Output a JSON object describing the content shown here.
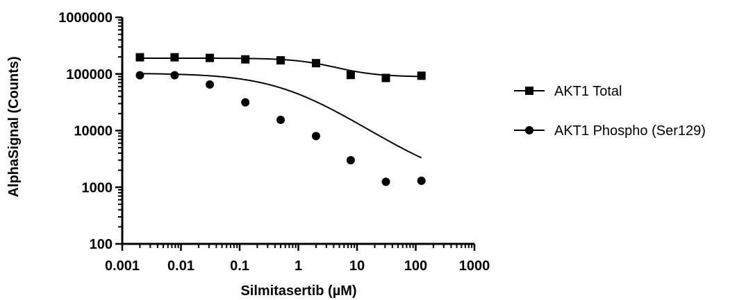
{
  "chart_data": {
    "type": "scatter",
    "xlabel": "Silmitasertib (µM)",
    "ylabel": "AlphaSignal (Counts)",
    "xscale": "log",
    "yscale": "log",
    "xlim": [
      0.001,
      1000
    ],
    "ylim": [
      100,
      1000000
    ],
    "x_ticks": [
      "0.001",
      "0.01",
      "0.1",
      "1",
      "10",
      "100",
      "1000"
    ],
    "y_ticks": [
      "100",
      "1000",
      "10000",
      "100000",
      "1000000"
    ],
    "grid": false,
    "legend_position": "right",
    "series": [
      {
        "name": "AKT1 Total",
        "marker": "square",
        "color": "#000000",
        "x": [
          0.002,
          0.0078,
          0.031,
          0.125,
          0.5,
          2,
          7.8,
          31,
          125
        ],
        "y": [
          197000,
          197000,
          192000,
          181000,
          174000,
          155000,
          96000,
          85000,
          93000
        ],
        "fit": {
          "model": "four-parameter logistic",
          "top": 190000,
          "bottom": 89000,
          "ec50": 3.2,
          "hill": 1.2
        }
      },
      {
        "name": "AKT1 Phospho (Ser129)",
        "marker": "circle",
        "color": "#000000",
        "x": [
          0.002,
          0.0078,
          0.031,
          0.125,
          0.5,
          2,
          7.8,
          31,
          125
        ],
        "y": [
          95000,
          95000,
          65000,
          31500,
          15500,
          8000,
          3000,
          1250,
          1300
        ],
        "fit": {
          "model": "four-parameter logistic",
          "top": 103000,
          "bottom": 1050,
          "ec50": 0.65,
          "hill": 0.72
        }
      }
    ]
  }
}
